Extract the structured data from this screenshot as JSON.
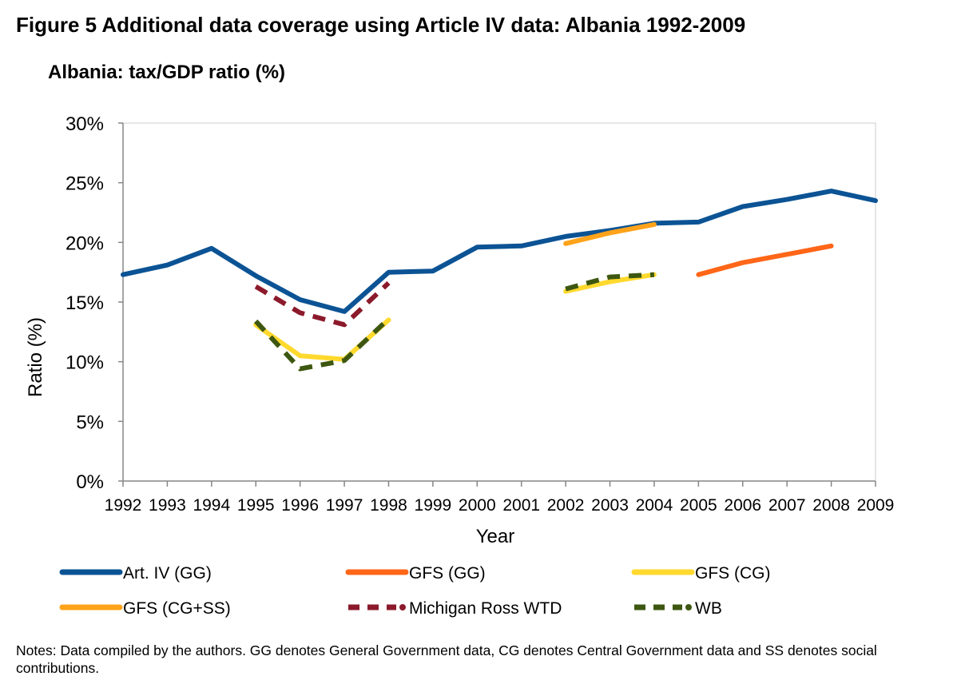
{
  "figure": {
    "title": "Figure 5 Additional data coverage using Article IV data: Albania 1992-2009",
    "notes": "Notes:  Data compiled by the authors.  GG denotes General Government data, CG denotes Central Government data and SS denotes social contributions."
  },
  "chart_data": {
    "type": "line",
    "title": "Albania:  tax/GDP ratio (%)",
    "xlabel": "Year",
    "ylabel": "Ratio (%)",
    "ylim": [
      0,
      30
    ],
    "y_ticks": [
      0,
      5,
      10,
      15,
      20,
      25,
      30
    ],
    "y_tick_labels": [
      "0%",
      "5%",
      "10%",
      "15%",
      "20%",
      "25%",
      "30%"
    ],
    "categories": [
      "1992",
      "1993",
      "1994",
      "1995",
      "1996",
      "1997",
      "1998",
      "1999",
      "2000",
      "2001",
      "2002",
      "2003",
      "2004",
      "2005",
      "2006",
      "2007",
      "2008",
      "2009"
    ],
    "grid": false,
    "legend_position": "bottom",
    "series": [
      {
        "name": "Art. IV (GG)",
        "color": "#0B5394",
        "dash": "solid",
        "values": [
          17.3,
          18.1,
          19.5,
          17.2,
          15.2,
          14.2,
          17.5,
          17.6,
          19.6,
          19.7,
          20.5,
          21.0,
          21.6,
          21.7,
          23.0,
          23.6,
          24.3,
          23.5
        ]
      },
      {
        "name": "GFS (GG)",
        "color": "#FF6618",
        "dash": "solid",
        "values": [
          null,
          null,
          null,
          null,
          null,
          null,
          null,
          null,
          null,
          null,
          null,
          null,
          null,
          17.3,
          18.3,
          19.0,
          19.7,
          null
        ]
      },
      {
        "name": "GFS (CG)",
        "color": "#FFD92E",
        "dash": "solid",
        "values": [
          null,
          null,
          null,
          13.1,
          10.5,
          10.2,
          13.5,
          null,
          null,
          null,
          15.9,
          16.7,
          17.3,
          null,
          null,
          null,
          null,
          null
        ]
      },
      {
        "name": "GFS (CG+SS)",
        "color": "#FFA31A",
        "dash": "solid",
        "values": [
          null,
          null,
          null,
          null,
          null,
          null,
          null,
          null,
          null,
          null,
          19.9,
          20.8,
          21.5,
          null,
          null,
          null,
          null,
          null
        ]
      },
      {
        "name": "Michigan Ross WTD",
        "color": "#8B1A2B",
        "dash": "dashed",
        "values": [
          null,
          null,
          null,
          16.3,
          14.1,
          13.1,
          16.6,
          null,
          null,
          null,
          null,
          null,
          null,
          null,
          null,
          null,
          null,
          null
        ]
      },
      {
        "name": "WB",
        "color": "#3D5710",
        "dash": "dashed",
        "values": [
          null,
          null,
          null,
          13.4,
          9.4,
          10.1,
          13.6,
          null,
          null,
          null,
          16.1,
          17.1,
          17.3,
          null,
          null,
          null,
          null,
          null
        ]
      }
    ]
  }
}
